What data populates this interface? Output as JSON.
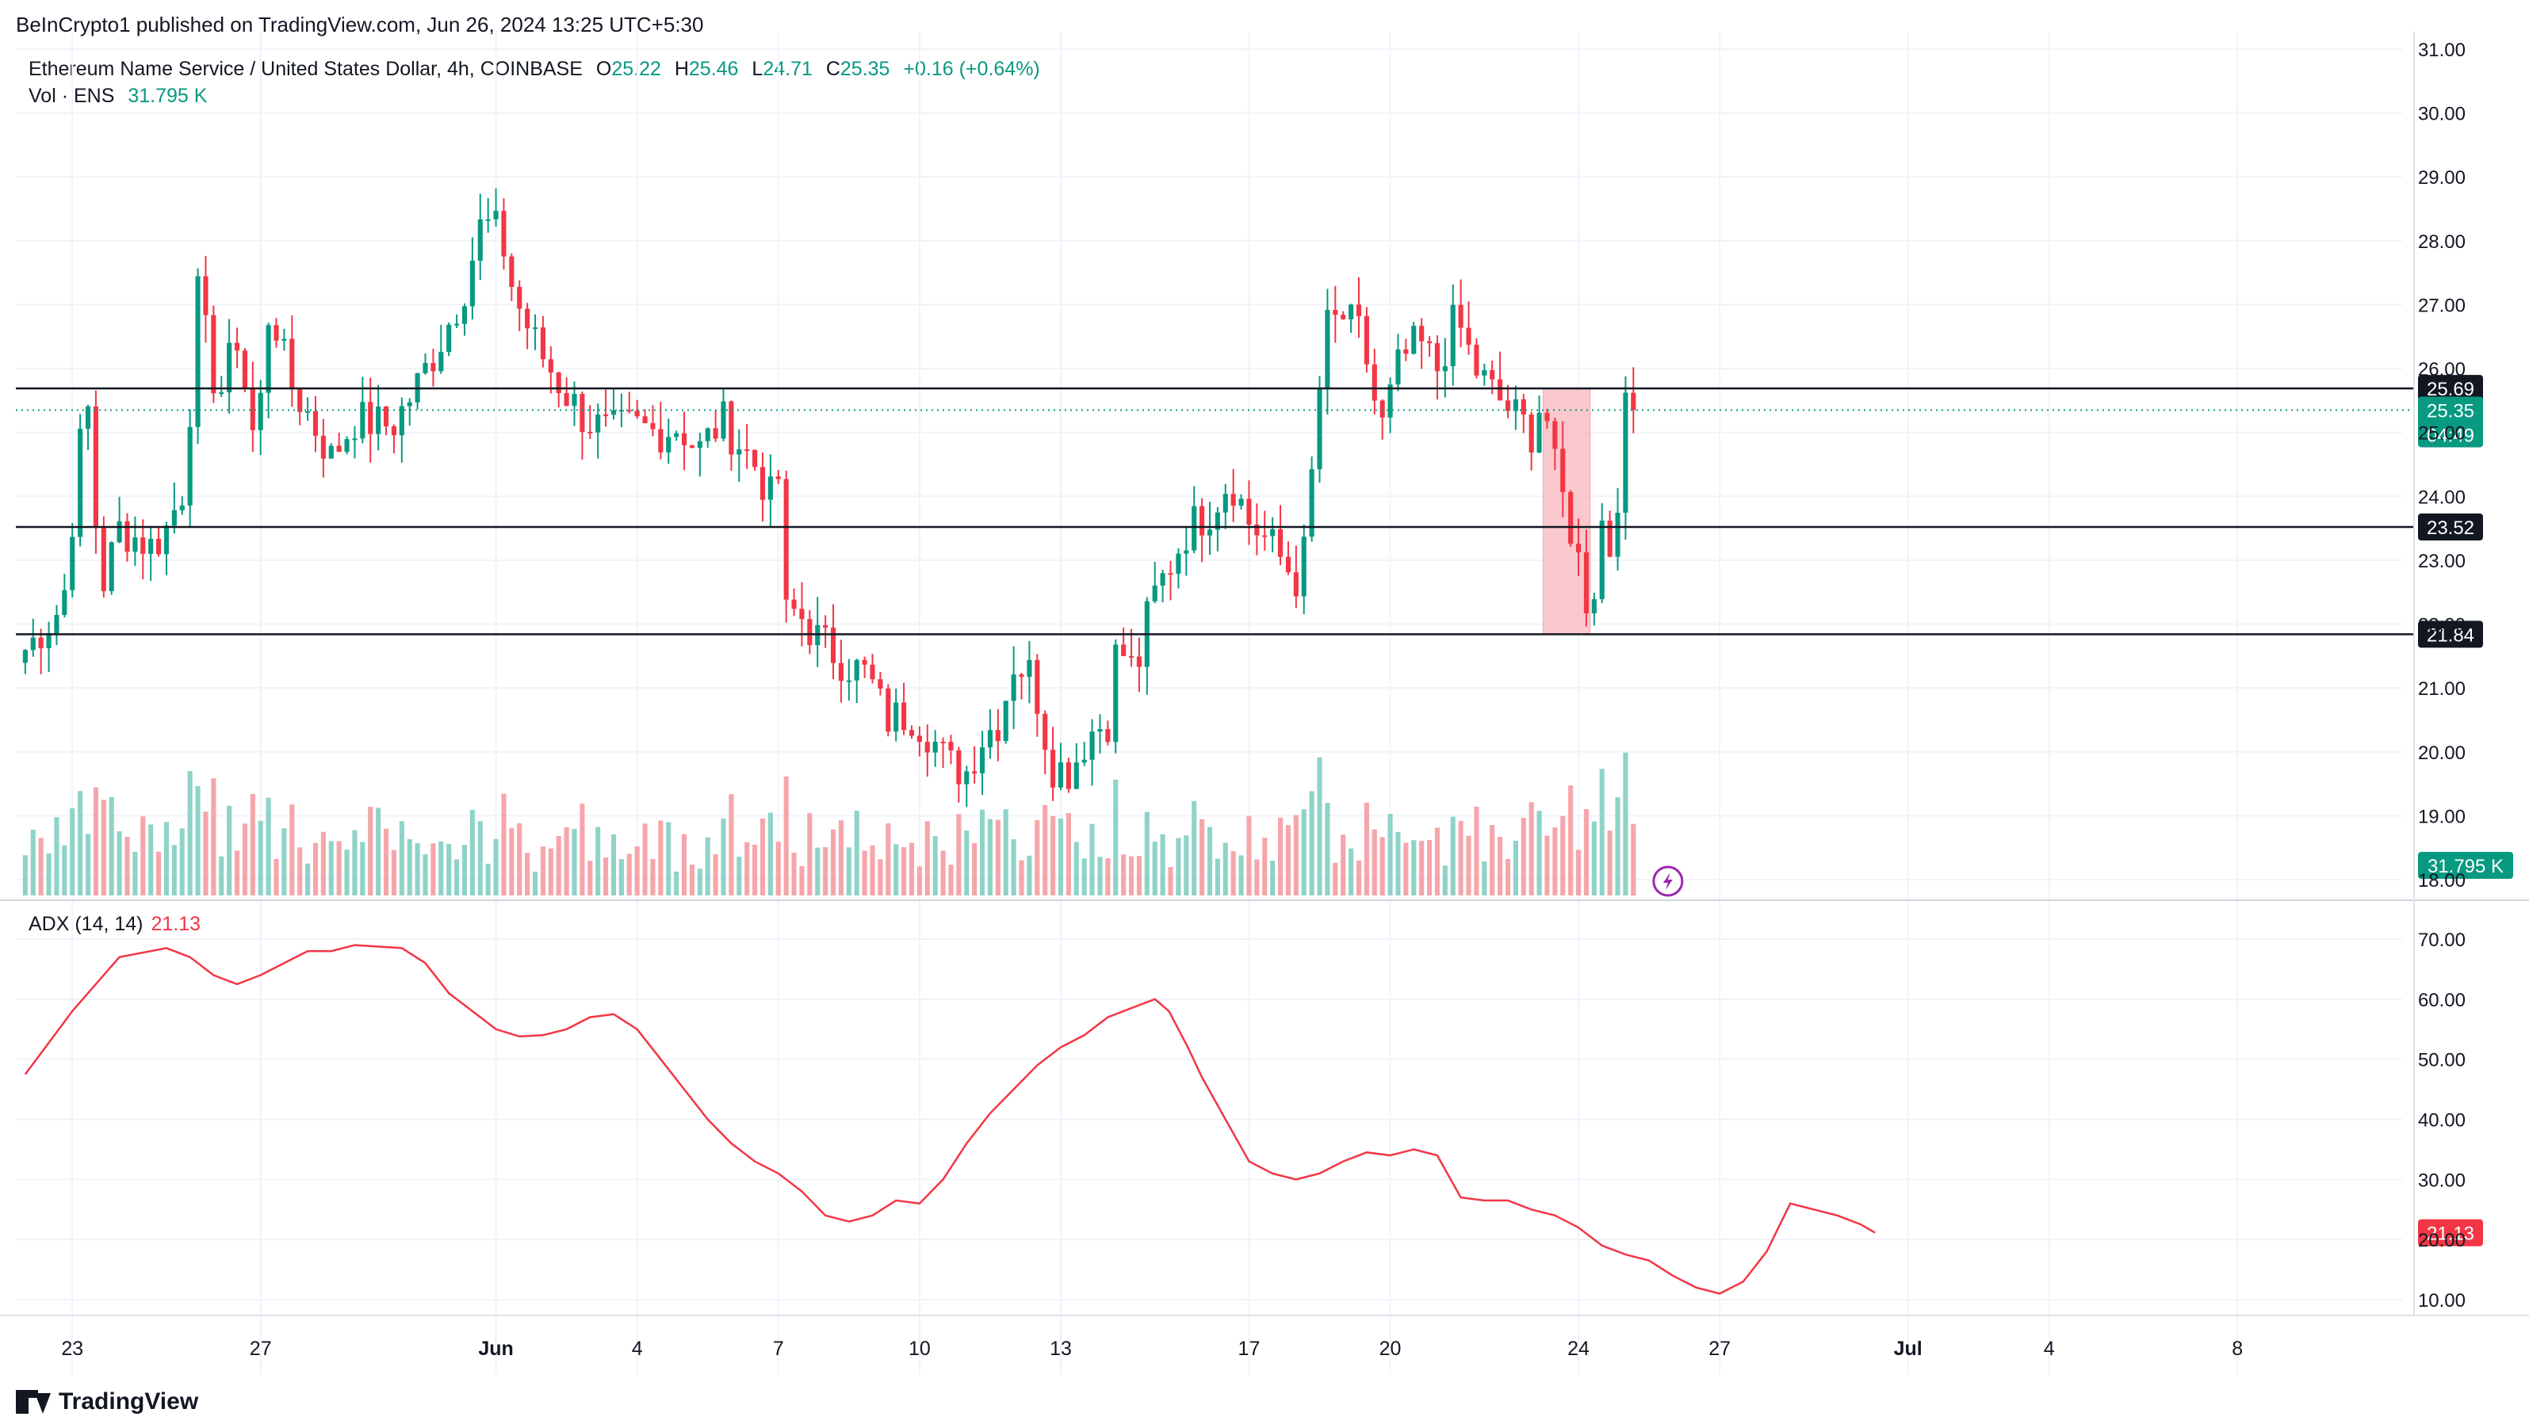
{
  "header": {
    "publisher": "BeInCrypto1 published on TradingView.com, Jun 26, 2024 13:25 UTC+5:30",
    "symbol": "Ethereum Name Service / United States Dollar, 4h, COINBASE",
    "ohlc": {
      "o_label": "O",
      "o": "25.22",
      "h_label": "H",
      "h": "25.46",
      "l_label": "L",
      "l": "24.71",
      "c_label": "C",
      "c": "25.35",
      "change": "+0.16 (+0.64%)"
    },
    "vol_label": "Vol · ENS",
    "vol_value": "31.795 K"
  },
  "adx": {
    "label": "ADX (14, 14)",
    "value": "21.13"
  },
  "brand": "TradingView",
  "colors": {
    "up": "#089981",
    "down": "#f23645",
    "up_vol": "#8fd3c8",
    "down_vol": "#f5a6ab",
    "adx_line": "#f23645",
    "zone": "#f7b7bc",
    "hline": "#131722"
  },
  "chart_data": [
    {
      "type": "candlestick",
      "title": "",
      "ylim": [
        18,
        31
      ],
      "y_ticks": [
        "31.00",
        "30.00",
        "29.00",
        "28.00",
        "27.00",
        "26.00",
        "25.00",
        "24.00",
        "23.00",
        "22.00",
        "21.00",
        "20.00",
        "19.00",
        "18.00"
      ],
      "x_ticks": [
        "23",
        "27",
        "Jun",
        "4",
        "7",
        "10",
        "13",
        "17",
        "20",
        "24",
        "27",
        "Jul",
        "4",
        "8"
      ],
      "x_tick_days": [
        23,
        27,
        32,
        35,
        38,
        41,
        44,
        48,
        51,
        55,
        58,
        62,
        65,
        69
      ],
      "horizontal_levels": [
        {
          "value": 25.69,
          "label": "25.69"
        },
        {
          "value": 23.52,
          "label": "23.52"
        },
        {
          "value": 21.84,
          "label": "21.84"
        }
      ],
      "current_price": {
        "value": 25.35,
        "label": "25.35",
        "countdown": "04:49"
      },
      "zone": {
        "x_start": 54.25,
        "x_end": 55.25,
        "y_low": 21.84,
        "y_high": 25.69
      },
      "anchor_closes": [
        [
          22.0,
          21.6
        ],
        [
          22.8,
          22.3
        ],
        [
          23.3,
          25.7
        ],
        [
          23.6,
          22.5
        ],
        [
          24.0,
          23.5
        ],
        [
          24.7,
          23.2
        ],
        [
          25.0,
          23.5
        ],
        [
          25.4,
          24.2
        ],
        [
          25.65,
          27.2
        ],
        [
          26.1,
          25.5
        ],
        [
          26.5,
          26.5
        ],
        [
          26.9,
          24.7
        ],
        [
          27.2,
          27.1
        ],
        [
          27.6,
          25.8
        ],
        [
          28.0,
          25.3
        ],
        [
          28.5,
          24.6
        ],
        [
          29.0,
          25.2
        ],
        [
          29.8,
          25.1
        ],
        [
          30.3,
          25.7
        ],
        [
          30.8,
          26.4
        ],
        [
          31.3,
          27.2
        ],
        [
          31.7,
          28.3
        ],
        [
          32.1,
          28.1
        ],
        [
          32.4,
          27.1
        ],
        [
          32.9,
          26.3
        ],
        [
          33.4,
          25.7
        ],
        [
          33.9,
          25.2
        ],
        [
          34.4,
          25.0
        ],
        [
          34.9,
          25.1
        ],
        [
          35.4,
          25.0
        ],
        [
          35.9,
          25.1
        ],
        [
          36.3,
          24.7
        ],
        [
          36.8,
          25.2
        ],
        [
          37.2,
          24.8
        ],
        [
          37.6,
          24.4
        ],
        [
          37.8,
          23.9
        ],
        [
          38.0,
          24.3
        ],
        [
          38.1,
          22.1
        ],
        [
          38.4,
          22.2
        ],
        [
          38.8,
          21.8
        ],
        [
          39.4,
          21.4
        ],
        [
          39.9,
          21.2
        ],
        [
          40.3,
          20.5
        ],
        [
          40.8,
          20.6
        ],
        [
          41.2,
          20.3
        ],
        [
          41.6,
          19.8
        ],
        [
          42.0,
          19.7
        ],
        [
          42.3,
          20.2
        ],
        [
          42.7,
          20.5
        ],
        [
          43.0,
          21.4
        ],
        [
          43.4,
          21.2
        ],
        [
          43.8,
          19.8
        ],
        [
          44.2,
          19.7
        ],
        [
          44.6,
          20.3
        ],
        [
          45.0,
          20.5
        ],
        [
          45.2,
          21.7
        ],
        [
          45.6,
          21.2
        ],
        [
          45.9,
          22.3
        ],
        [
          46.3,
          22.9
        ],
        [
          46.7,
          23.5
        ],
        [
          47.2,
          23.8
        ],
        [
          47.6,
          24.3
        ],
        [
          48.0,
          23.6
        ],
        [
          48.4,
          23.3
        ],
        [
          48.8,
          22.9
        ],
        [
          49.1,
          22.6
        ],
        [
          49.4,
          24.8
        ],
        [
          49.6,
          26.6
        ],
        [
          50.0,
          26.8
        ],
        [
          50.4,
          26.5
        ],
        [
          50.8,
          25.0
        ],
        [
          51.2,
          26.1
        ],
        [
          51.6,
          26.4
        ],
        [
          52.0,
          26.0
        ],
        [
          52.4,
          26.8
        ],
        [
          52.8,
          26.0
        ],
        [
          53.2,
          25.6
        ],
        [
          53.6,
          25.3
        ],
        [
          54.0,
          25.0
        ],
        [
          54.25,
          25.6
        ],
        [
          54.5,
          24.4
        ],
        [
          54.8,
          23.6
        ],
        [
          55.0,
          23.0
        ],
        [
          55.25,
          22.1
        ],
        [
          55.5,
          23.6
        ],
        [
          55.7,
          23.1
        ],
        [
          56.0,
          25.3
        ],
        [
          56.3,
          25.35
        ]
      ],
      "volume_ylim": [
        0,
        100000
      ],
      "volume_current": "31.795 K"
    },
    {
      "type": "line",
      "title": "ADX (14, 14)",
      "ylim": [
        5,
        75
      ],
      "y_ticks": [
        "70.00",
        "60.00",
        "50.00",
        "40.00",
        "30.00",
        "20.00",
        "10.00"
      ],
      "current": {
        "value": 21.13,
        "label": "21.13"
      },
      "points": [
        [
          22.0,
          47.5
        ],
        [
          23.0,
          58
        ],
        [
          24.0,
          67
        ],
        [
          25.0,
          68.5
        ],
        [
          25.5,
          67
        ],
        [
          26.0,
          64
        ],
        [
          26.5,
          62.5
        ],
        [
          27.0,
          64
        ],
        [
          28.0,
          68
        ],
        [
          28.5,
          68
        ],
        [
          29.0,
          69
        ],
        [
          30.0,
          68.5
        ],
        [
          30.5,
          66
        ],
        [
          31.0,
          61
        ],
        [
          31.5,
          58
        ],
        [
          32.0,
          55
        ],
        [
          32.5,
          53.8
        ],
        [
          33.0,
          54
        ],
        [
          33.5,
          55
        ],
        [
          34.0,
          57
        ],
        [
          34.5,
          57.5
        ],
        [
          35.0,
          55
        ],
        [
          35.5,
          50
        ],
        [
          36.0,
          45
        ],
        [
          36.5,
          40
        ],
        [
          37.0,
          36
        ],
        [
          37.5,
          33
        ],
        [
          38.0,
          31
        ],
        [
          38.5,
          28
        ],
        [
          39.0,
          24
        ],
        [
          39.5,
          23
        ],
        [
          40.0,
          24
        ],
        [
          40.5,
          26.5
        ],
        [
          41.0,
          26
        ],
        [
          41.5,
          30
        ],
        [
          42.0,
          36
        ],
        [
          42.5,
          41
        ],
        [
          43.0,
          45
        ],
        [
          43.5,
          49
        ],
        [
          44.0,
          52
        ],
        [
          44.5,
          54
        ],
        [
          45.0,
          57
        ],
        [
          45.5,
          58.5
        ],
        [
          46.0,
          60
        ],
        [
          46.3,
          58
        ],
        [
          46.7,
          52
        ],
        [
          47.0,
          47
        ],
        [
          47.5,
          40
        ],
        [
          48.0,
          33
        ],
        [
          48.5,
          31
        ],
        [
          49.0,
          30
        ],
        [
          49.5,
          31
        ],
        [
          50.0,
          33
        ],
        [
          50.5,
          34.5
        ],
        [
          51.0,
          34
        ],
        [
          51.5,
          35
        ],
        [
          52.0,
          34
        ],
        [
          52.5,
          27
        ],
        [
          53.0,
          26.5
        ],
        [
          53.5,
          26.5
        ],
        [
          54.0,
          25
        ],
        [
          54.5,
          24
        ],
        [
          55.0,
          22
        ],
        [
          55.5,
          19
        ],
        [
          56.0,
          17.5
        ],
        [
          56.5,
          16.5
        ],
        [
          57.0,
          14
        ],
        [
          57.5,
          12
        ],
        [
          58.0,
          11
        ],
        [
          58.5,
          13
        ],
        [
          59.0,
          18
        ],
        [
          59.5,
          26
        ],
        [
          60.0,
          25
        ],
        [
          60.5,
          24
        ],
        [
          61.0,
          22.5
        ],
        [
          61.3,
          21.13
        ]
      ]
    }
  ]
}
